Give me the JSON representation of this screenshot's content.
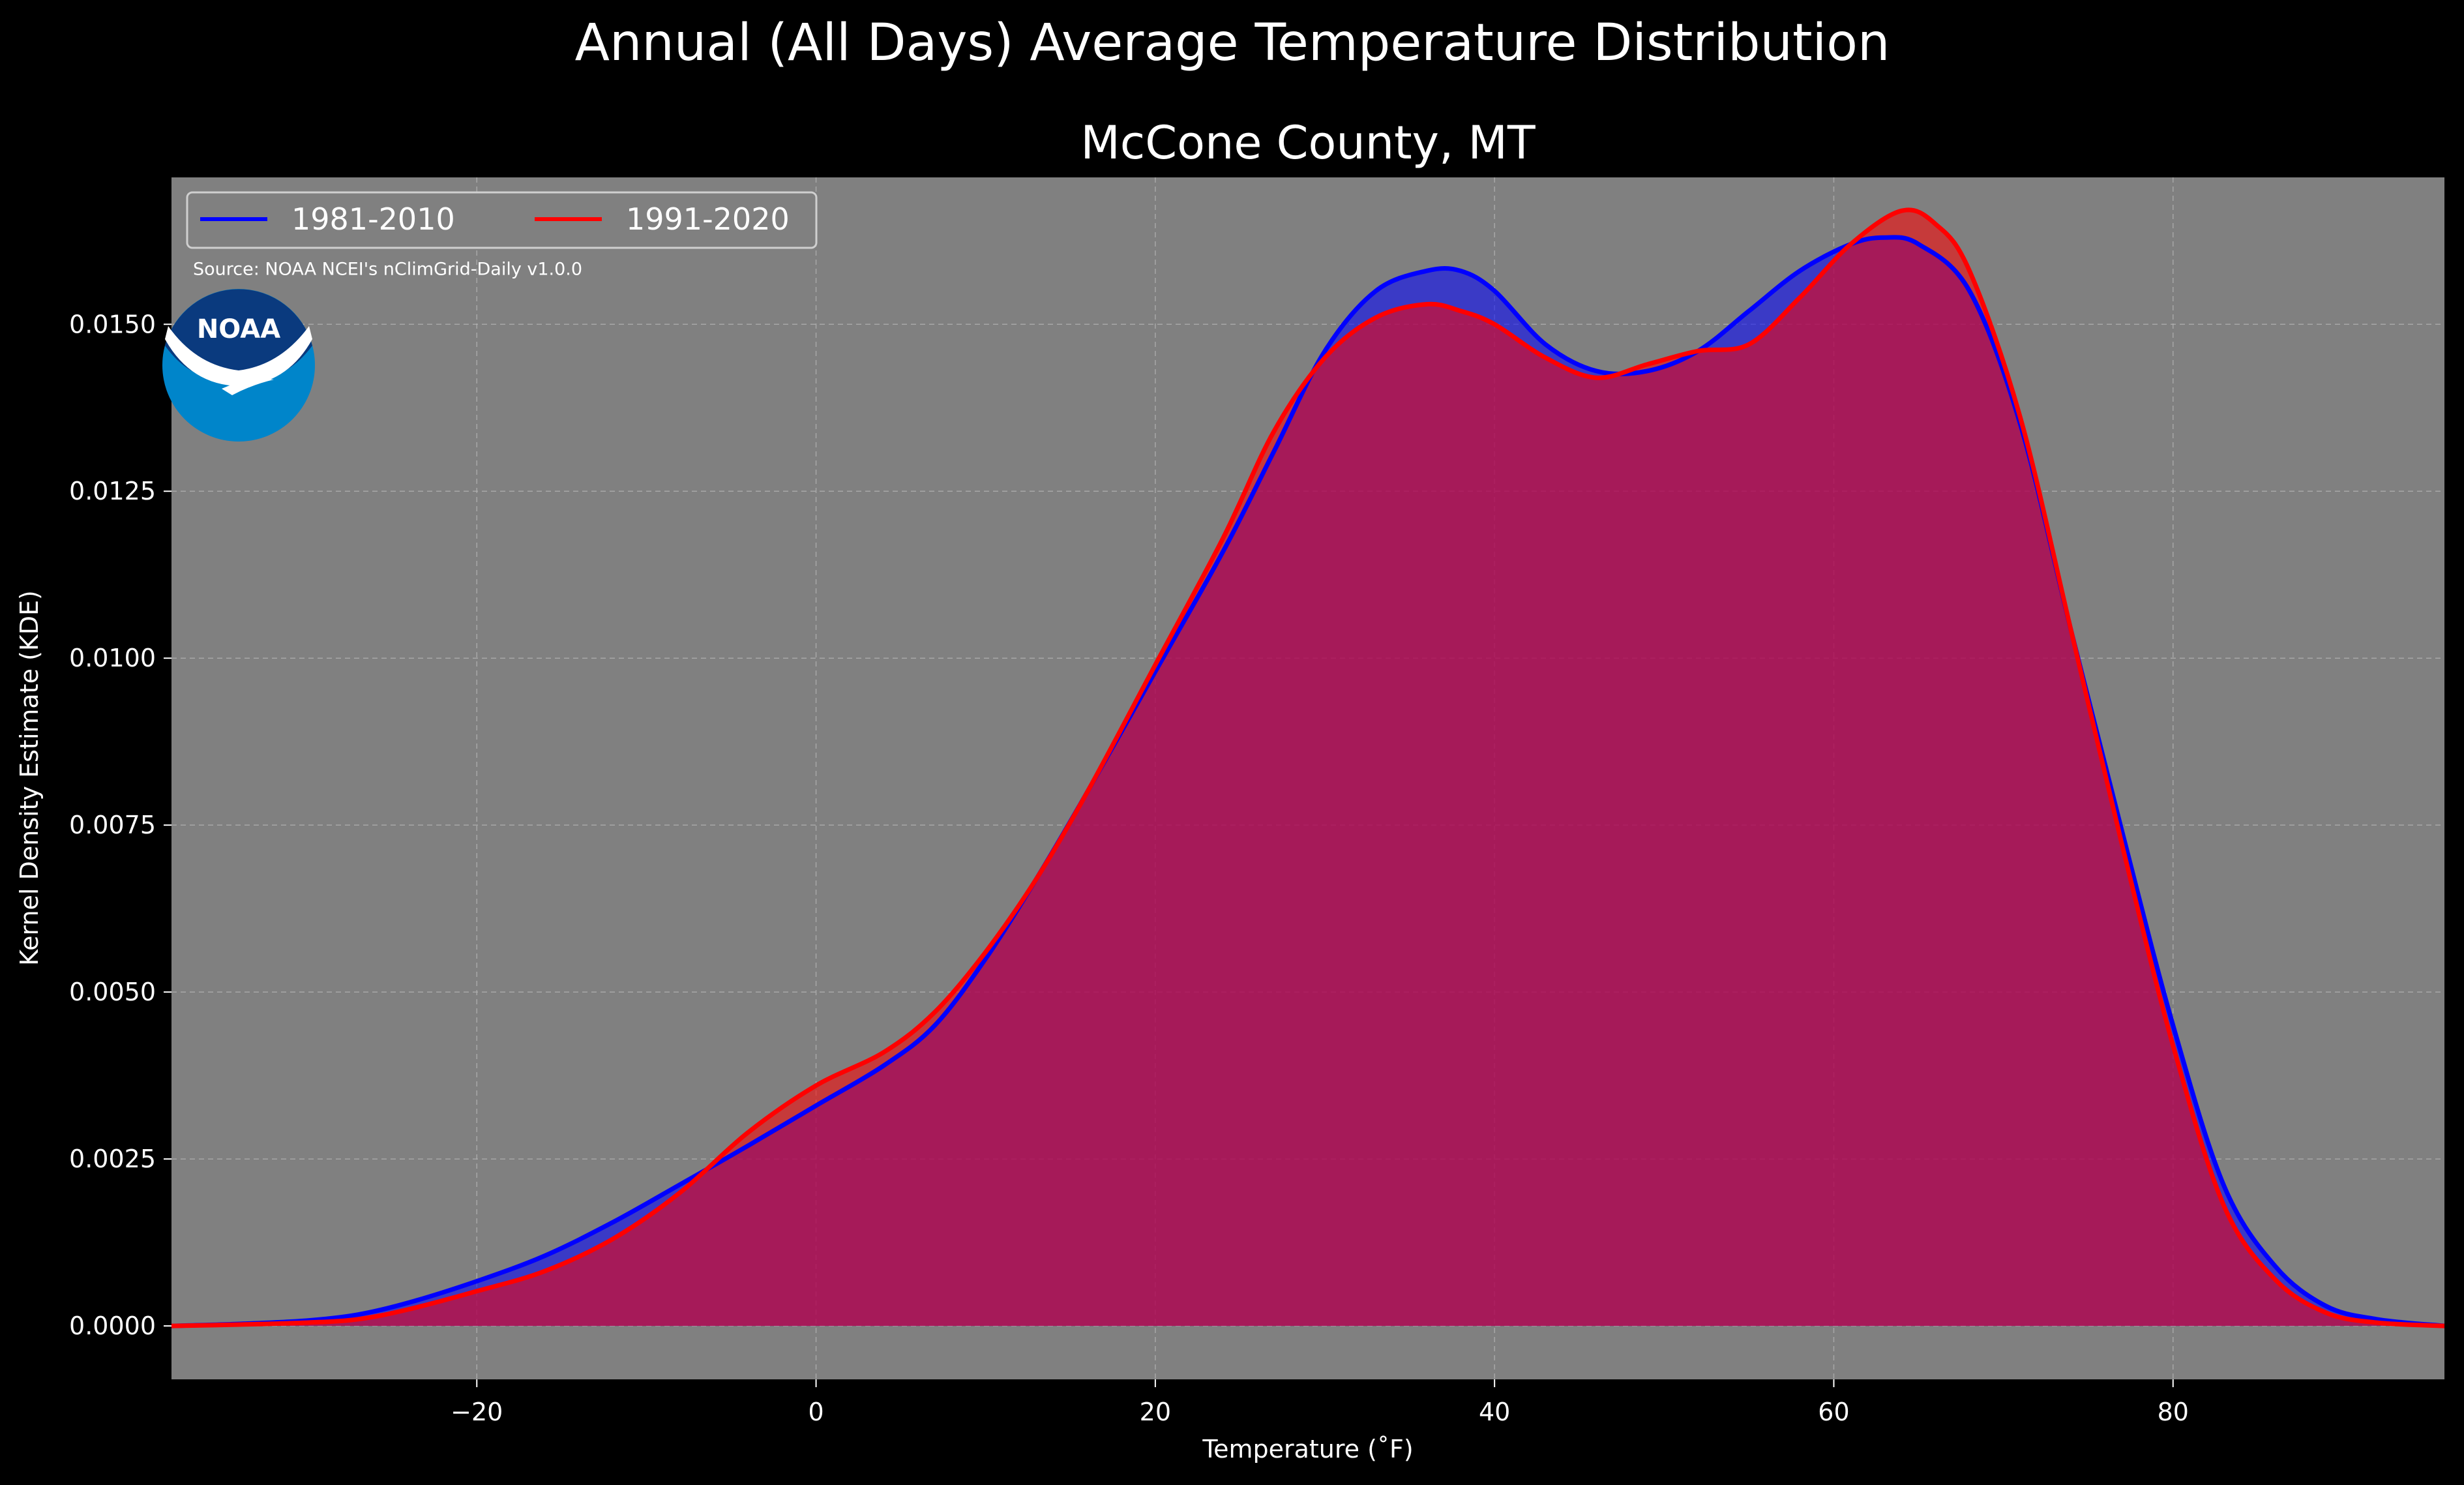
{
  "suptitle": "Annual (All Days) Average Temperature Distribution",
  "source_note": "Source: NOAA NCEI's nClimGrid-Daily v1.0.0",
  "logo": {
    "text": "NOAA",
    "colors": {
      "outer": "#0085CA",
      "inner": "#0A3A7E",
      "bird": "#FFFFFF"
    }
  },
  "colors": {
    "figure_background": "#000000",
    "plot_background": "#808080",
    "grid": "#b4b4b4",
    "text": "#ffffff",
    "series_1981_2010": "#0000ff",
    "series_1991_2020": "#ff0000",
    "fill_overlap": "#9e1f5e"
  },
  "chart_data": {
    "type": "area",
    "title": "McCone County, MT",
    "xlabel": "Temperature (˚F)",
    "ylabel": "Kernel Density Estimate (KDE)",
    "xlim": [
      -38,
      96
    ],
    "ylim": [
      -0.0008,
      0.0172
    ],
    "xticks": [
      -20,
      0,
      20,
      40,
      60,
      80
    ],
    "xtick_labels": [
      "−20",
      "0",
      "20",
      "40",
      "60",
      "80"
    ],
    "yticks": [
      0.0,
      0.0025,
      0.005,
      0.0075,
      0.01,
      0.0125,
      0.015
    ],
    "ytick_labels": [
      "0.0000",
      "0.0025",
      "0.0050",
      "0.0075",
      "0.0100",
      "0.0125",
      "0.0150"
    ],
    "grid": true,
    "legend_position": "top-left",
    "series": [
      {
        "name": "1981-2010",
        "color": "#0000ff",
        "points": [
          [
            -38,
            0.0
          ],
          [
            -34,
            3e-05
          ],
          [
            -30,
            8e-05
          ],
          [
            -27,
            0.00017
          ],
          [
            -24,
            0.00035
          ],
          [
            -20,
            0.00067
          ],
          [
            -16,
            0.00105
          ],
          [
            -12,
            0.00155
          ],
          [
            -8,
            0.00212
          ],
          [
            -4,
            0.0027
          ],
          [
            0,
            0.0033
          ],
          [
            4,
            0.0039
          ],
          [
            7,
            0.0045
          ],
          [
            10,
            0.0055
          ],
          [
            13,
            0.0067
          ],
          [
            16,
            0.008
          ],
          [
            20,
            0.0098
          ],
          [
            24,
            0.0116
          ],
          [
            27,
            0.0131
          ],
          [
            30,
            0.0146
          ],
          [
            33,
            0.0155
          ],
          [
            36,
            0.0158
          ],
          [
            38,
            0.0158
          ],
          [
            40,
            0.0155
          ],
          [
            43,
            0.0147
          ],
          [
            46,
            0.0143
          ],
          [
            49,
            0.0143
          ],
          [
            52,
            0.0146
          ],
          [
            55,
            0.0152
          ],
          [
            58,
            0.0158
          ],
          [
            61,
            0.0162
          ],
          [
            63,
            0.0163
          ],
          [
            65,
            0.0162
          ],
          [
            68,
            0.0155
          ],
          [
            71,
            0.0135
          ],
          [
            74,
            0.0104
          ],
          [
            77,
            0.0074
          ],
          [
            80,
            0.0045
          ],
          [
            83,
            0.0021
          ],
          [
            86,
            0.0009
          ],
          [
            89,
            0.0003
          ],
          [
            92,
            0.0001
          ],
          [
            96,
            0.0
          ]
        ]
      },
      {
        "name": "1991-2020",
        "color": "#ff0000",
        "points": [
          [
            -38,
            0.0
          ],
          [
            -34,
            2e-05
          ],
          [
            -30,
            5e-05
          ],
          [
            -27,
            0.0001
          ],
          [
            -24,
            0.00025
          ],
          [
            -20,
            0.00052
          ],
          [
            -16,
            0.00082
          ],
          [
            -12,
            0.0013
          ],
          [
            -8,
            0.002
          ],
          [
            -4,
            0.0029
          ],
          [
            0,
            0.0036
          ],
          [
            4,
            0.0041
          ],
          [
            7,
            0.0047
          ],
          [
            10,
            0.0056
          ],
          [
            13,
            0.0067
          ],
          [
            16,
            0.008
          ],
          [
            20,
            0.0099
          ],
          [
            24,
            0.0118
          ],
          [
            27,
            0.0134
          ],
          [
            30,
            0.0145
          ],
          [
            33,
            0.0151
          ],
          [
            36,
            0.0153
          ],
          [
            38,
            0.0152
          ],
          [
            40,
            0.015
          ],
          [
            43,
            0.0145
          ],
          [
            46,
            0.0142
          ],
          [
            49,
            0.0144
          ],
          [
            52,
            0.0146
          ],
          [
            55,
            0.0147
          ],
          [
            58,
            0.0154
          ],
          [
            61,
            0.0162
          ],
          [
            64,
            0.0167
          ],
          [
            66,
            0.0165
          ],
          [
            68,
            0.0158
          ],
          [
            71,
            0.0136
          ],
          [
            74,
            0.0104
          ],
          [
            77,
            0.0072
          ],
          [
            80,
            0.0042
          ],
          [
            83,
            0.0018
          ],
          [
            86,
            0.0007
          ],
          [
            89,
            0.0002
          ],
          [
            92,
            5e-05
          ],
          [
            96,
            0.0
          ]
        ]
      }
    ]
  }
}
